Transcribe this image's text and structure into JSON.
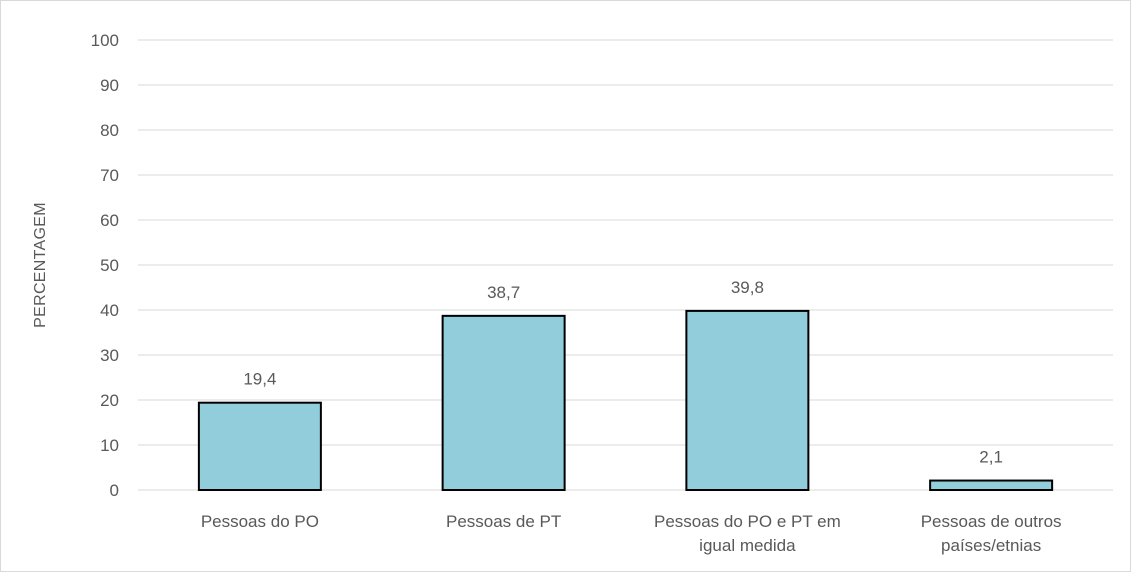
{
  "chart_data": {
    "type": "bar",
    "categories": [
      [
        "Pessoas do PO"
      ],
      [
        "Pessoas de PT"
      ],
      [
        "Pessoas do PO e PT em",
        "igual medida"
      ],
      [
        "Pessoas de outros",
        "países/etnias"
      ]
    ],
    "values": [
      19.4,
      38.7,
      39.8,
      2.1
    ],
    "data_labels": [
      "19,4",
      "38,7",
      "39,8",
      "2,1"
    ],
    "title": "",
    "xlabel": "",
    "ylabel": "PERCENTAGEM",
    "ylim": [
      0,
      100
    ],
    "yticks": [
      0,
      10,
      20,
      30,
      40,
      50,
      60,
      70,
      80,
      90,
      100
    ],
    "grid": true,
    "legend": "none",
    "colors": {
      "bar_fill": "#92cddc",
      "bar_stroke": "#000000",
      "grid": "#d9d9d9",
      "text": "#595959"
    }
  }
}
